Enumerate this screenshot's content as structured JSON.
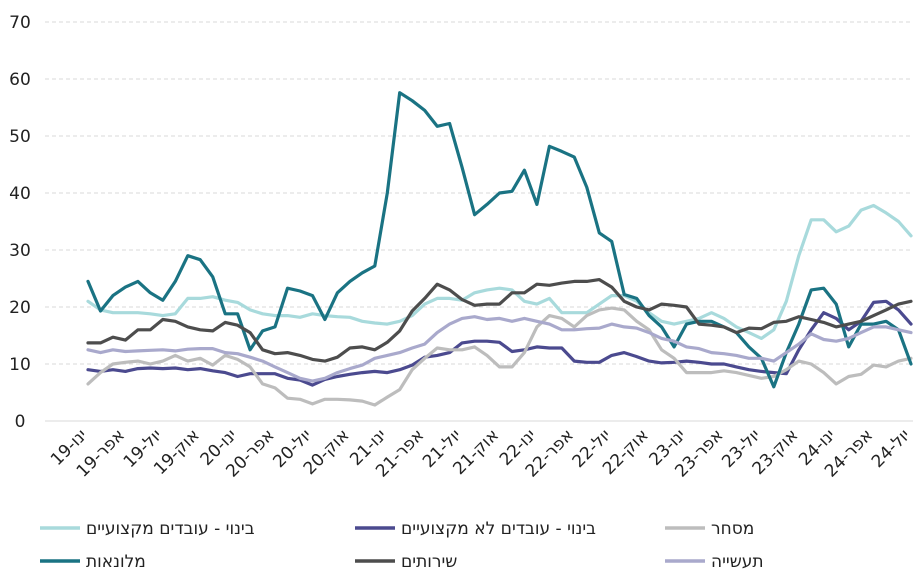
{
  "chart_data": {
    "type": "line",
    "categories": [
      "ינו-19",
      null,
      null,
      "אפר-19",
      null,
      null,
      "יול-19",
      null,
      null,
      "אוק-19",
      null,
      null,
      "ינו-20",
      null,
      null,
      "אפר-20",
      null,
      null,
      "יול-20",
      null,
      null,
      "אוק-20",
      null,
      null,
      "ינו-21",
      null,
      null,
      "אפר-21",
      null,
      null,
      "יול-21",
      null,
      null,
      "אוק-21",
      null,
      null,
      "ינו-22",
      null,
      null,
      "אפר-22",
      null,
      null,
      "יול-22",
      null,
      null,
      "אוק-22",
      null,
      null,
      "ינו-23",
      null,
      null,
      "אפר-23",
      null,
      null,
      "יול-23",
      null,
      null,
      "אוק-23",
      null,
      null,
      "ינו-24",
      null,
      null,
      "אפר-24",
      null,
      null,
      "יול-24"
    ],
    "ylim": [
      0,
      70
    ],
    "yticks": [
      0,
      10,
      20,
      30,
      40,
      50,
      60,
      70
    ],
    "grid": true,
    "series": [
      {
        "name": "בינוי - עובדים מקצועיים",
        "color": "#a8dadc",
        "values": [
          21,
          19.5,
          19,
          19,
          19,
          18.8,
          18.5,
          18.8,
          21.5,
          21.5,
          21.8,
          21.2,
          20.8,
          19.5,
          18.8,
          18.5,
          18.5,
          18.2,
          18.8,
          18.5,
          18.3,
          18.2,
          17.5,
          17.2,
          17,
          17.5,
          18.5,
          20.5,
          21.5,
          21.5,
          21.2,
          22.5,
          23,
          23.3,
          23,
          21,
          20.5,
          21.5,
          19,
          19,
          19,
          20.5,
          22,
          22,
          21,
          19,
          17.5,
          17,
          17.5,
          18,
          19,
          18,
          16.5,
          15.5,
          14.5,
          16,
          21,
          29,
          35.3,
          35.3,
          33.2,
          34.2,
          37,
          37.8,
          36.5,
          35,
          32.5
        ]
      },
      {
        "name": "בינוי - עובדים לא מקצועיים",
        "color": "#4b4a8f",
        "values": [
          9,
          8.7,
          9,
          8.7,
          9.2,
          9.3,
          9.2,
          9.3,
          9,
          9.2,
          8.8,
          8.5,
          7.8,
          8.3,
          8.3,
          8.3,
          7.5,
          7.2,
          6.3,
          7.3,
          7.8,
          8.2,
          8.5,
          8.7,
          8.5,
          9,
          9.8,
          11.2,
          11.5,
          12,
          13.7,
          14,
          14,
          13.8,
          12.2,
          12.5,
          13,
          12.8,
          12.8,
          10.5,
          10.3,
          10.3,
          11.5,
          12,
          11.3,
          10.5,
          10.2,
          10.3,
          10.5,
          10.3,
          10,
          10,
          9.5,
          9,
          8.7,
          8.5,
          8.3,
          12.5,
          16,
          19,
          18,
          16,
          17.5,
          20.8,
          21,
          19.5,
          17
        ]
      },
      {
        "name": "מסחר",
        "color": "#bdbdbd",
        "values": [
          6.5,
          8.5,
          10,
          10.3,
          10.5,
          10,
          10.5,
          11.5,
          10.5,
          11,
          9.8,
          11.5,
          10.8,
          9.5,
          6.5,
          5.8,
          4,
          3.8,
          3,
          3.8,
          3.8,
          3.7,
          3.5,
          2.8,
          4.2,
          5.5,
          9,
          11,
          12.8,
          12.5,
          12.5,
          13,
          11.5,
          9.5,
          9.5,
          12,
          16.5,
          18.5,
          18,
          16.5,
          18.5,
          19.5,
          19.8,
          19.5,
          17.5,
          16,
          12.5,
          11,
          8.5,
          8.5,
          8.5,
          8.8,
          8.5,
          8,
          7.5,
          7.8,
          9,
          10.5,
          10,
          8.5,
          6.5,
          7.8,
          8.2,
          9.8,
          9.5,
          10.5,
          11
        ]
      },
      {
        "name": "מלונאות",
        "color": "#1a7383",
        "values": [
          24.5,
          19.3,
          22,
          23.5,
          24.5,
          22.5,
          21.2,
          24.5,
          29,
          28.3,
          25.3,
          18.8,
          18.8,
          12.5,
          15.8,
          16.5,
          23.3,
          22.8,
          22,
          17.8,
          22.5,
          24.5,
          26,
          27.2,
          40,
          57.6,
          56.2,
          54.5,
          51.7,
          52.2,
          44.5,
          36.2,
          38,
          40,
          40.3,
          44,
          38,
          48.2,
          47.3,
          46.3,
          41,
          33,
          31.5,
          22.2,
          21.5,
          18.5,
          16.5,
          13,
          17,
          17.5,
          17.5,
          16.5,
          15.5,
          13,
          11,
          6,
          12,
          17,
          23,
          23.3,
          20.5,
          13,
          17,
          17,
          17.5,
          16,
          10
        ]
      },
      {
        "name": "שירותים",
        "color": "#4d4d4d",
        "values": [
          13.7,
          13.7,
          14.7,
          14.2,
          16,
          16,
          17.8,
          17.5,
          16.5,
          16,
          15.8,
          17.3,
          16.8,
          15.5,
          12.5,
          11.8,
          12,
          11.5,
          10.8,
          10.5,
          11.2,
          12.8,
          13,
          12.5,
          13.8,
          15.8,
          19.3,
          21.5,
          24,
          23,
          21.3,
          20.3,
          20.5,
          20.5,
          22.5,
          22.5,
          24,
          23.8,
          24.2,
          24.5,
          24.5,
          24.8,
          23.5,
          21,
          20,
          19.5,
          20.5,
          20.3,
          20,
          17,
          16.8,
          16.5,
          15.5,
          16.3,
          16.2,
          17.3,
          17.5,
          18.3,
          17.8,
          17.3,
          16.5,
          17,
          17.5,
          18.5,
          19.5,
          20.5,
          21
        ]
      },
      {
        "name": "תעשייה",
        "color": "#a9a9cc",
        "values": [
          12.5,
          12,
          12.5,
          12.2,
          12.3,
          12.4,
          12.5,
          12.3,
          12.6,
          12.7,
          12.7,
          12,
          11.8,
          11.2,
          10.5,
          9.5,
          8.5,
          7.5,
          7,
          7.5,
          8.5,
          9.2,
          9.8,
          11,
          11.5,
          12,
          12.8,
          13.5,
          15.5,
          17,
          18,
          18.3,
          17.8,
          18,
          17.5,
          18,
          17.5,
          17,
          16,
          16,
          16.2,
          16.3,
          17,
          16.5,
          16.3,
          15.5,
          14.5,
          14,
          13,
          12.7,
          12,
          11.8,
          11.5,
          11,
          11,
          10.5,
          12,
          13.5,
          15.3,
          14.3,
          14,
          14.5,
          15.5,
          16.5,
          16.5,
          16,
          15.5
        ]
      }
    ]
  }
}
